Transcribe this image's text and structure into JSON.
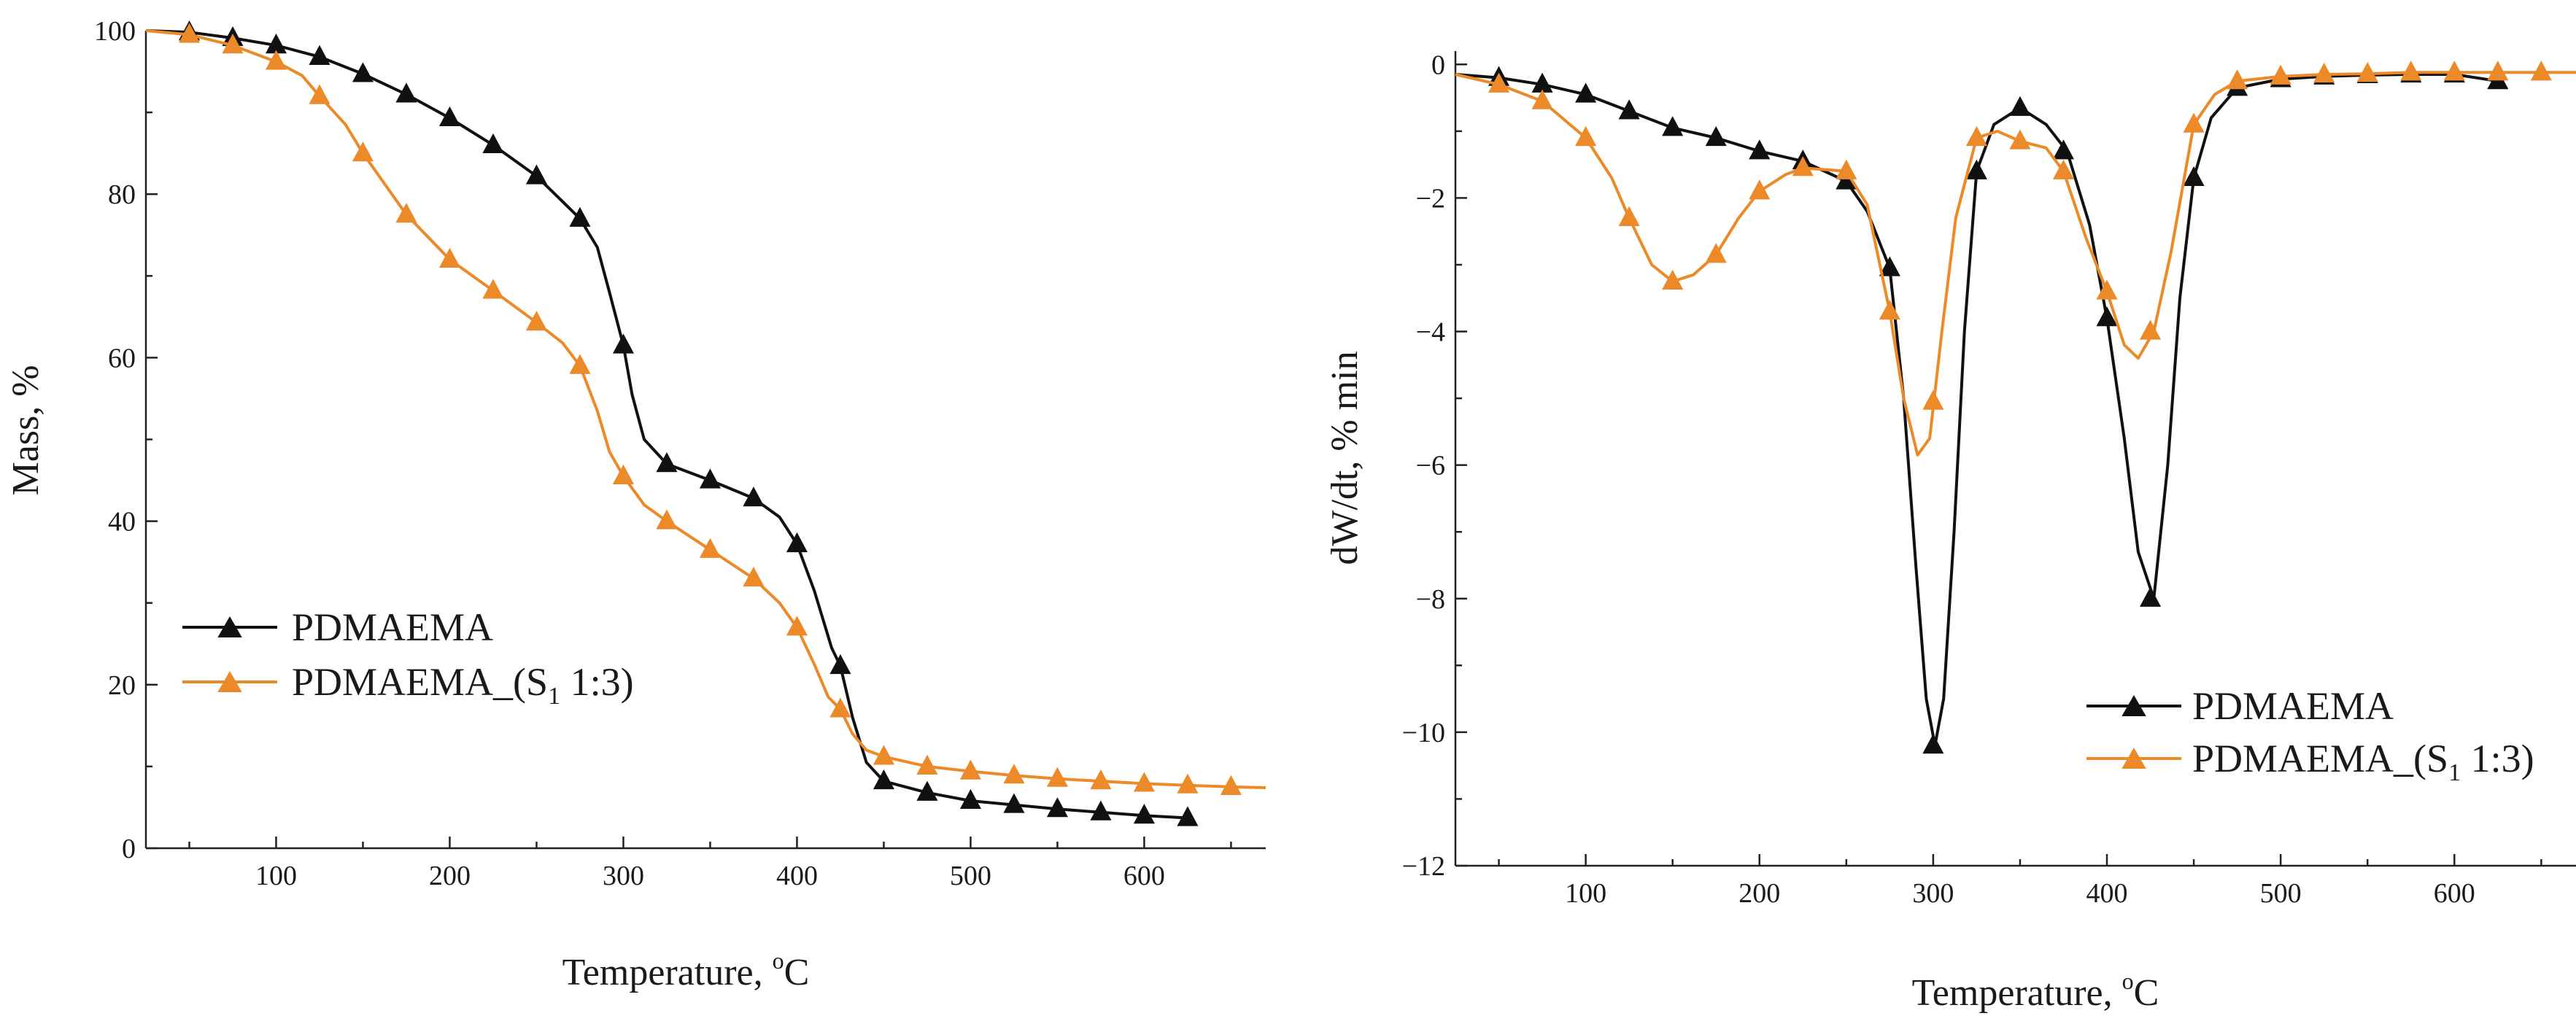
{
  "chart_data": [
    {
      "type": "line",
      "id": "mass",
      "xlabel": "Temperature, ",
      "xlabel_sup": "o",
      "xlabel_unit": "C",
      "ylabel": "Mass, %",
      "xlim": [
        25,
        670
      ],
      "ylim": [
        0,
        100
      ],
      "xticks": [
        100,
        200,
        300,
        400,
        500,
        600
      ],
      "yticks": [
        0,
        20,
        40,
        60,
        80,
        100
      ],
      "legend_position": "lower-left",
      "series": [
        {
          "name": "PDMAEMA",
          "color": "#111111",
          "curve": [
            [
              25,
              100
            ],
            [
              50,
              99.8
            ],
            [
              75,
              99.1
            ],
            [
              100,
              98.2
            ],
            [
              125,
              96.8
            ],
            [
              150,
              94.7
            ],
            [
              175,
              92.2
            ],
            [
              200,
              89.3
            ],
            [
              225,
              86.0
            ],
            [
              250,
              82.2
            ],
            [
              275,
              77.0
            ],
            [
              285,
              73.5
            ],
            [
              292,
              68.0
            ],
            [
              300,
              61.5
            ],
            [
              305,
              55.5
            ],
            [
              312,
              50.0
            ],
            [
              325,
              47.0
            ],
            [
              350,
              45.0
            ],
            [
              375,
              42.8
            ],
            [
              390,
              40.5
            ],
            [
              400,
              37.2
            ],
            [
              410,
              31.5
            ],
            [
              420,
              24.5
            ],
            [
              425,
              22.3
            ],
            [
              432,
              16.0
            ],
            [
              440,
              10.5
            ],
            [
              450,
              8.2
            ],
            [
              475,
              6.8
            ],
            [
              500,
              5.8
            ],
            [
              525,
              5.3
            ],
            [
              550,
              4.8
            ],
            [
              575,
              4.4
            ],
            [
              600,
              4.0
            ],
            [
              625,
              3.7
            ]
          ],
          "marker_x": [
            50,
            75,
            100,
            125,
            150,
            175,
            200,
            225,
            250,
            275,
            300,
            325,
            350,
            375,
            400,
            425,
            450,
            475,
            500,
            525,
            550,
            575,
            600,
            625
          ],
          "marker_y": [
            99.8,
            99.1,
            98.2,
            96.8,
            94.7,
            92.2,
            89.3,
            86.0,
            82.2,
            77.0,
            61.5,
            47.0,
            45.0,
            42.8,
            37.2,
            22.3,
            8.2,
            6.8,
            5.8,
            5.3,
            4.8,
            4.4,
            4.0,
            3.7
          ]
        },
        {
          "name": "PDMAEMA_(S",
          "sub": "1",
          "suffix": " 1:3)",
          "color": "#ec8a2a",
          "curve": [
            [
              25,
              100
            ],
            [
              50,
              99.5
            ],
            [
              75,
              98.2
            ],
            [
              100,
              96.2
            ],
            [
              115,
              94.5
            ],
            [
              125,
              92.0
            ],
            [
              140,
              88.5
            ],
            [
              150,
              85.0
            ],
            [
              165,
              80.5
            ],
            [
              175,
              77.5
            ],
            [
              190,
              74.2
            ],
            [
              200,
              72.0
            ],
            [
              225,
              68.2
            ],
            [
              250,
              64.3
            ],
            [
              265,
              61.8
            ],
            [
              275,
              59.0
            ],
            [
              285,
              53.5
            ],
            [
              292,
              48.5
            ],
            [
              300,
              45.5
            ],
            [
              312,
              42.0
            ],
            [
              325,
              40.0
            ],
            [
              350,
              36.5
            ],
            [
              375,
              33.0
            ],
            [
              390,
              30.0
            ],
            [
              400,
              27.0
            ],
            [
              410,
              22.5
            ],
            [
              418,
              18.5
            ],
            [
              425,
              17.0
            ],
            [
              432,
              14.0
            ],
            [
              440,
              12.0
            ],
            [
              450,
              11.2
            ],
            [
              475,
              10.0
            ],
            [
              500,
              9.4
            ],
            [
              525,
              8.9
            ],
            [
              550,
              8.5
            ],
            [
              575,
              8.2
            ],
            [
              600,
              7.9
            ],
            [
              625,
              7.7
            ],
            [
              650,
              7.5
            ],
            [
              670,
              7.4
            ]
          ],
          "marker_x": [
            50,
            75,
            100,
            125,
            150,
            175,
            200,
            225,
            250,
            275,
            300,
            325,
            350,
            375,
            400,
            425,
            450,
            475,
            500,
            525,
            550,
            575,
            600,
            625,
            650
          ],
          "marker_y": [
            99.5,
            98.2,
            96.2,
            92.0,
            85.0,
            77.5,
            72.0,
            68.2,
            64.3,
            59.0,
            45.5,
            40.0,
            36.5,
            33.0,
            27.0,
            17.0,
            11.2,
            10.0,
            9.4,
            8.9,
            8.5,
            8.2,
            7.9,
            7.7,
            7.5
          ]
        }
      ]
    },
    {
      "type": "line",
      "id": "dtg",
      "xlabel": "Temperature, ",
      "xlabel_sup": "o",
      "xlabel_unit": "C",
      "ylabel": "dW/dt, % min",
      "xlim": [
        25,
        670
      ],
      "ylim": [
        -12,
        0.2
      ],
      "xticks": [
        100,
        200,
        300,
        400,
        500,
        600
      ],
      "yticks": [
        0,
        -2,
        -4,
        -6,
        -8,
        -10,
        -12
      ],
      "ytick_labels": [
        "0",
        "−2",
        "−4",
        "−6",
        "−8",
        "−10",
        "−12"
      ],
      "legend_position": "lower-right",
      "series": [
        {
          "name": "PDMAEMA",
          "color": "#111111",
          "curve": [
            [
              25,
              -0.15
            ],
            [
              50,
              -0.2
            ],
            [
              75,
              -0.3
            ],
            [
              100,
              -0.45
            ],
            [
              125,
              -0.7
            ],
            [
              150,
              -0.95
            ],
            [
              175,
              -1.1
            ],
            [
              200,
              -1.3
            ],
            [
              225,
              -1.45
            ],
            [
              250,
              -1.75
            ],
            [
              262,
              -2.2
            ],
            [
              275,
              -3.05
            ],
            [
              283,
              -5.0
            ],
            [
              290,
              -7.5
            ],
            [
              296,
              -9.5
            ],
            [
              301,
              -10.2
            ],
            [
              306,
              -9.5
            ],
            [
              312,
              -7.0
            ],
            [
              318,
              -4.0
            ],
            [
              325,
              -1.6
            ],
            [
              335,
              -0.9
            ],
            [
              350,
              -0.65
            ],
            [
              365,
              -0.9
            ],
            [
              377,
              -1.3
            ],
            [
              390,
              -2.4
            ],
            [
              400,
              -3.8
            ],
            [
              410,
              -5.6
            ],
            [
              418,
              -7.3
            ],
            [
              427,
              -8.0
            ],
            [
              435,
              -6.0
            ],
            [
              442,
              -3.5
            ],
            [
              450,
              -1.7
            ],
            [
              460,
              -0.8
            ],
            [
              475,
              -0.35
            ],
            [
              500,
              -0.22
            ],
            [
              525,
              -0.18
            ],
            [
              550,
              -0.16
            ],
            [
              575,
              -0.15
            ],
            [
              600,
              -0.15
            ],
            [
              625,
              -0.25
            ]
          ],
          "marker_x": [
            50,
            75,
            100,
            125,
            150,
            175,
            200,
            225,
            250,
            275,
            300,
            325,
            350,
            375,
            400,
            425,
            450,
            475,
            500,
            525,
            550,
            575,
            600,
            625
          ],
          "marker_y": [
            -0.2,
            -0.3,
            -0.45,
            -0.7,
            -0.95,
            -1.1,
            -1.3,
            -1.45,
            -1.75,
            -3.05,
            -10.2,
            -1.6,
            -0.65,
            -1.3,
            -3.8,
            -8.0,
            -1.7,
            -0.35,
            -0.22,
            -0.18,
            -0.16,
            -0.15,
            -0.15,
            -0.25
          ]
        },
        {
          "name": "PDMAEMA_(S",
          "sub": "1",
          "suffix": " 1:3)",
          "color": "#ec8a2a",
          "curve": [
            [
              25,
              -0.15
            ],
            [
              50,
              -0.3
            ],
            [
              75,
              -0.55
            ],
            [
              100,
              -1.1
            ],
            [
              115,
              -1.7
            ],
            [
              125,
              -2.3
            ],
            [
              138,
              -3.0
            ],
            [
              150,
              -3.25
            ],
            [
              162,
              -3.15
            ],
            [
              175,
              -2.85
            ],
            [
              188,
              -2.3
            ],
            [
              200,
              -1.9
            ],
            [
              215,
              -1.65
            ],
            [
              225,
              -1.55
            ],
            [
              250,
              -1.6
            ],
            [
              262,
              -2.1
            ],
            [
              275,
              -3.7
            ],
            [
              283,
              -5.0
            ],
            [
              291,
              -5.85
            ],
            [
              298,
              -5.6
            ],
            [
              305,
              -4.0
            ],
            [
              313,
              -2.3
            ],
            [
              325,
              -1.1
            ],
            [
              337,
              -1.0
            ],
            [
              350,
              -1.15
            ],
            [
              365,
              -1.25
            ],
            [
              375,
              -1.6
            ],
            [
              388,
              -2.6
            ],
            [
              400,
              -3.4
            ],
            [
              410,
              -4.2
            ],
            [
              418,
              -4.4
            ],
            [
              427,
              -4.0
            ],
            [
              437,
              -2.8
            ],
            [
              450,
              -0.9
            ],
            [
              462,
              -0.45
            ],
            [
              475,
              -0.25
            ],
            [
              500,
              -0.18
            ],
            [
              525,
              -0.15
            ],
            [
              550,
              -0.14
            ],
            [
              575,
              -0.12
            ],
            [
              600,
              -0.12
            ],
            [
              625,
              -0.12
            ],
            [
              650,
              -0.12
            ],
            [
              670,
              -0.12
            ]
          ],
          "marker_x": [
            50,
            75,
            100,
            125,
            150,
            175,
            200,
            225,
            250,
            275,
            300,
            325,
            350,
            375,
            400,
            425,
            450,
            475,
            500,
            525,
            550,
            575,
            600,
            625,
            650
          ],
          "marker_y": [
            -0.3,
            -0.55,
            -1.1,
            -2.3,
            -3.25,
            -2.85,
            -1.9,
            -1.55,
            -1.6,
            -3.7,
            -5.05,
            -1.1,
            -1.15,
            -1.6,
            -3.4,
            -4.0,
            -0.9,
            -0.25,
            -0.18,
            -0.15,
            -0.14,
            -0.12,
            -0.12,
            -0.12,
            -0.12
          ]
        }
      ]
    }
  ]
}
